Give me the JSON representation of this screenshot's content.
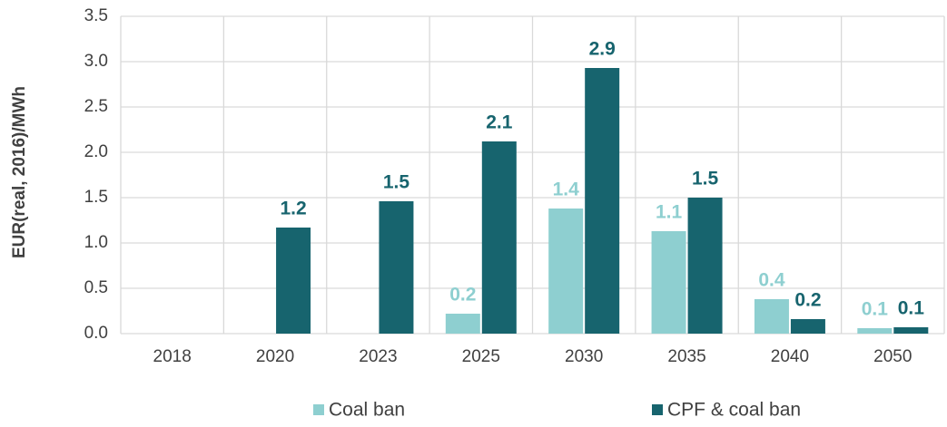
{
  "chart_data": {
    "type": "bar",
    "y_label": "EUR(real, 2016)/MWh",
    "categories": [
      "2018",
      "2020",
      "2023",
      "2025",
      "2030",
      "2035",
      "2040",
      "2050"
    ],
    "series": [
      {
        "name": "Coal ban",
        "color": "#8ecfd0",
        "values": [
          null,
          null,
          null,
          0.22,
          1.38,
          1.13,
          0.38,
          0.06
        ],
        "value_labels": [
          null,
          null,
          null,
          "0.2",
          "1.4",
          "1.1",
          "0.4",
          "0.1"
        ]
      },
      {
        "name": "CPF & coal ban",
        "color": "#17646e",
        "values": [
          null,
          1.17,
          1.46,
          2.12,
          2.93,
          1.5,
          0.16,
          0.07
        ],
        "value_labels": [
          null,
          "1.2",
          "1.5",
          "2.1",
          "2.9",
          "1.5",
          "0.2",
          "0.1"
        ]
      }
    ],
    "ylim": [
      0,
      3.5
    ],
    "yticks": [
      {
        "value": 0,
        "label": "0.0"
      },
      0.5,
      {
        "value": 1,
        "label": "1.0"
      },
      1.5,
      {
        "value": 2,
        "label": "2.0"
      },
      2.5,
      {
        "value": 3,
        "label": "3.0"
      },
      3.5
    ],
    "grid": true,
    "legend": "bottom"
  }
}
